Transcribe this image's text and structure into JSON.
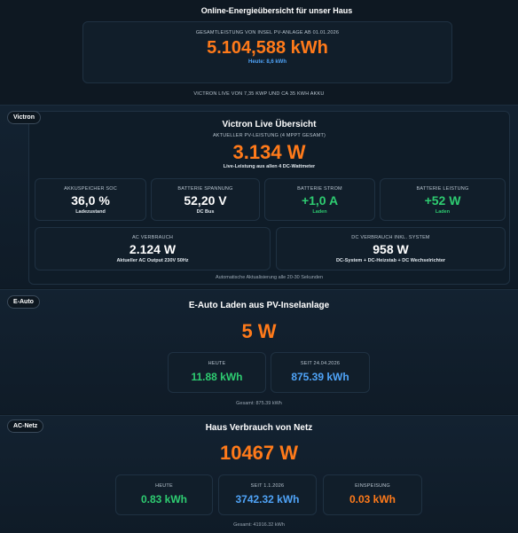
{
  "header": {
    "title": "Online-Energieübersicht für unser Haus"
  },
  "total": {
    "label": "GESAMTLEISTUNG VON INSEL PV-ANLAGE AB 01.01.2026",
    "value": "5.104,588 kWh",
    "today": "Heute: 8,6 kWh"
  },
  "subtitle": "VICTRON LIVE VON 7,35 KWP UND CA 35 KWH AKKU",
  "victron": {
    "tag": "Victron",
    "title": "Victron Live Übersicht",
    "label": "AKTUELLER PV-LEISTUNG (4 MPPT GESAMT)",
    "value": "3.134 W",
    "note": "Live-Leistung aus allen 4 DC-Wattmeter",
    "cards": [
      {
        "label": "AKKUSPEICHER SOC",
        "value": "36,0 %",
        "sub": "Ladezustand"
      },
      {
        "label": "BATTERIE SPANNUNG",
        "value": "52,20 V",
        "sub": "DC Bus"
      },
      {
        "label": "BATTERIE STROM",
        "value": "+1,0 A",
        "sub": "Laden"
      },
      {
        "label": "BATTERIE LEISTUNG",
        "value": "+52 W",
        "sub": "Laden"
      },
      {
        "label": "AC VERBRAUCH",
        "value": "2.124 W",
        "sub": "Aktueller AC Output 230V 50Hz"
      },
      {
        "label": "DC VERBRAUCH INKL. SYSTEM",
        "value": "958 W",
        "sub": "DC-System + DC-Heizstab + DC Wechselrichter"
      }
    ],
    "footer": "Automatische Aktualisierung alle 20-30 Sekunden"
  },
  "eauto": {
    "tag": "E-Auto",
    "title": "E-Auto Laden aus PV-Inselanlage",
    "value": "5 W",
    "cards": [
      {
        "label": "HEUTE",
        "value": "11.88 kWh"
      },
      {
        "label": "SEIT 24.04.2026",
        "value": "875.39 kWh"
      }
    ],
    "footer": "Gesamt: 875.39 kWh"
  },
  "acnetz": {
    "tag": "AC-Netz",
    "title": "Haus Verbrauch von Netz",
    "value": "10467 W",
    "cards": [
      {
        "label": "HEUTE",
        "value": "0.83 kWh"
      },
      {
        "label": "SEIT 1.1.2026",
        "value": "3742.32 kWh"
      },
      {
        "label": "EINSPEISUNG",
        "value": "0.03 kWh"
      }
    ],
    "footer": "Gesamt: 41916.32 kWh"
  }
}
